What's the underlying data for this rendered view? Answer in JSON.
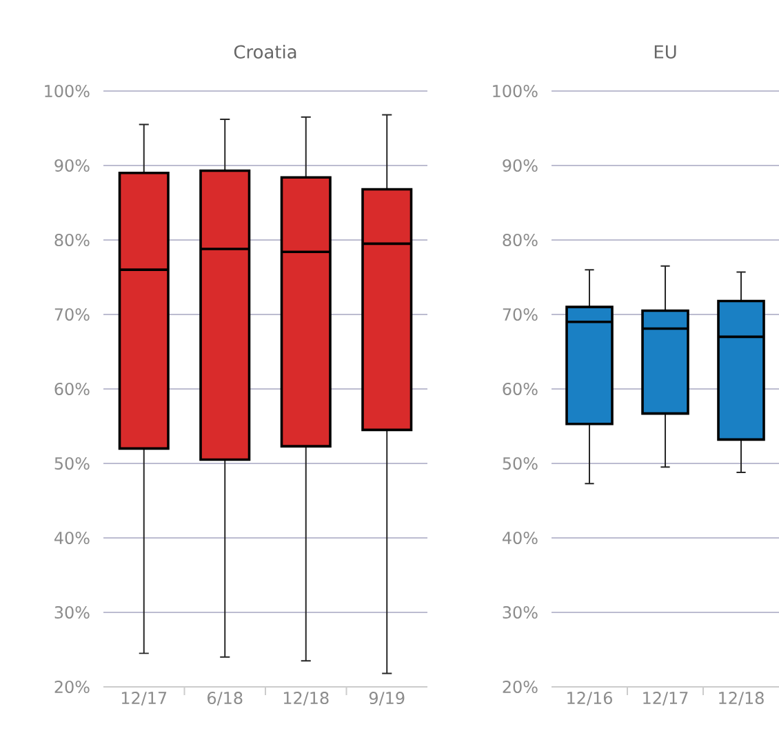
{
  "chart_data": [
    {
      "type": "box",
      "title": "Croatia",
      "categories": [
        "12/17",
        "6/18",
        "12/18",
        "9/19"
      ],
      "color": "#d92b2b",
      "boxes": [
        {
          "low": 24.5,
          "q1": 52,
          "median": 76,
          "q3": 89,
          "high": 95.5
        },
        {
          "low": 24,
          "q1": 50.5,
          "median": 78.8,
          "q3": 89.3,
          "high": 96.2
        },
        {
          "low": 23.5,
          "q1": 52.3,
          "median": 78.4,
          "q3": 88.4,
          "high": 96.5
        },
        {
          "low": 21.8,
          "q1": 54.5,
          "median": 79.5,
          "q3": 86.8,
          "high": 96.8
        }
      ],
      "ylim": [
        20,
        100
      ],
      "yticks": [
        {
          "value": 20,
          "label": "20%"
        },
        {
          "value": 30,
          "label": "30%"
        },
        {
          "value": 40,
          "label": "40%"
        },
        {
          "value": 50,
          "label": "50%"
        },
        {
          "value": 60,
          "label": "60%"
        },
        {
          "value": 70,
          "label": "70%"
        },
        {
          "value": 80,
          "label": "80%"
        },
        {
          "value": 90,
          "label": "90%"
        },
        {
          "value": 100,
          "label": "100%"
        }
      ],
      "grid": "y"
    },
    {
      "type": "box",
      "title": "EU",
      "categories": [
        "12/16",
        "12/17",
        "12/18"
      ],
      "color": "#1a80c4",
      "boxes": [
        {
          "low": 47.3,
          "q1": 55.3,
          "median": 69,
          "q3": 71,
          "high": 76
        },
        {
          "low": 49.5,
          "q1": 56.7,
          "median": 68.1,
          "q3": 70.5,
          "high": 76.5
        },
        {
          "low": 48.8,
          "q1": 53.2,
          "median": 67,
          "q3": 71.8,
          "high": 75.7
        }
      ],
      "ylim": [
        20,
        100
      ],
      "yticks": [
        {
          "value": 20,
          "label": "20%"
        },
        {
          "value": 30,
          "label": "30%"
        },
        {
          "value": 40,
          "label": "40%"
        },
        {
          "value": 50,
          "label": "50%"
        },
        {
          "value": 60,
          "label": "60%"
        },
        {
          "value": 70,
          "label": "70%"
        },
        {
          "value": 80,
          "label": "80%"
        },
        {
          "value": 90,
          "label": "90%"
        },
        {
          "value": 100,
          "label": "100%"
        }
      ],
      "grid": "y"
    }
  ]
}
